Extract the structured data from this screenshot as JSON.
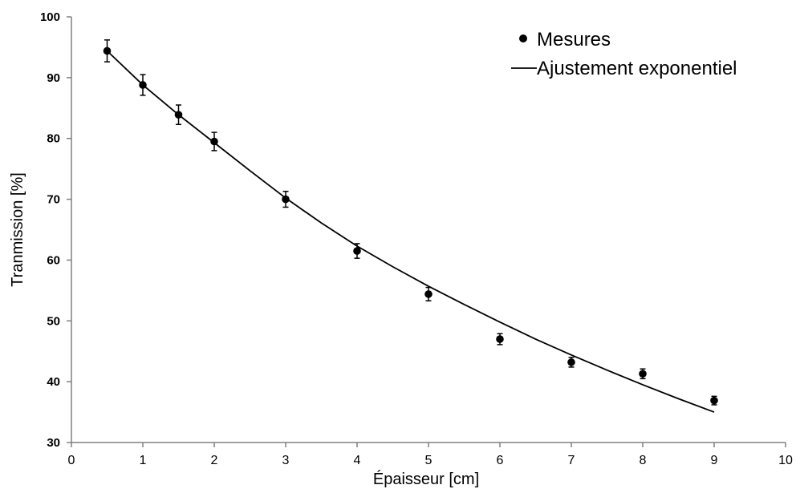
{
  "chart_data": {
    "type": "scatter",
    "xlabel": "Épaisseur [cm]",
    "ylabel": "Tranmission [%]",
    "xlim": [
      0,
      10
    ],
    "ylim": [
      30,
      100
    ],
    "xticks": [
      0,
      1,
      2,
      3,
      4,
      5,
      6,
      7,
      8,
      9,
      10
    ],
    "yticks": [
      30,
      40,
      50,
      60,
      70,
      80,
      90,
      100
    ],
    "grid": false,
    "legend_position": "top-right",
    "series": [
      {
        "name": "Mesures",
        "kind": "scatter",
        "marker": "circle",
        "color": "#000000",
        "x": [
          0.5,
          1,
          1.5,
          2,
          3,
          4,
          5,
          6,
          7,
          8,
          9
        ],
        "y": [
          94.4,
          88.8,
          83.9,
          79.5,
          70.0,
          61.5,
          54.4,
          47.0,
          43.2,
          41.3,
          36.9
        ],
        "yerr": [
          1.8,
          1.7,
          1.6,
          1.5,
          1.3,
          1.2,
          1.1,
          0.9,
          0.8,
          0.8,
          0.7
        ]
      },
      {
        "name": "Ajustement exponentiel",
        "kind": "line",
        "color": "#000000",
        "model": "exponential",
        "x": [
          0.5,
          1,
          1.5,
          2,
          2.5,
          3,
          3.5,
          4,
          4.5,
          5,
          5.5,
          6,
          6.5,
          7,
          7.5,
          8,
          8.5,
          9
        ],
        "y": [
          94.4,
          88.8,
          83.9,
          79.3,
          74.7,
          70.2,
          66.1,
          62.3,
          58.9,
          55.7,
          52.7,
          49.8,
          47.0,
          44.4,
          41.9,
          39.5,
          37.2,
          35.0
        ]
      }
    ]
  }
}
